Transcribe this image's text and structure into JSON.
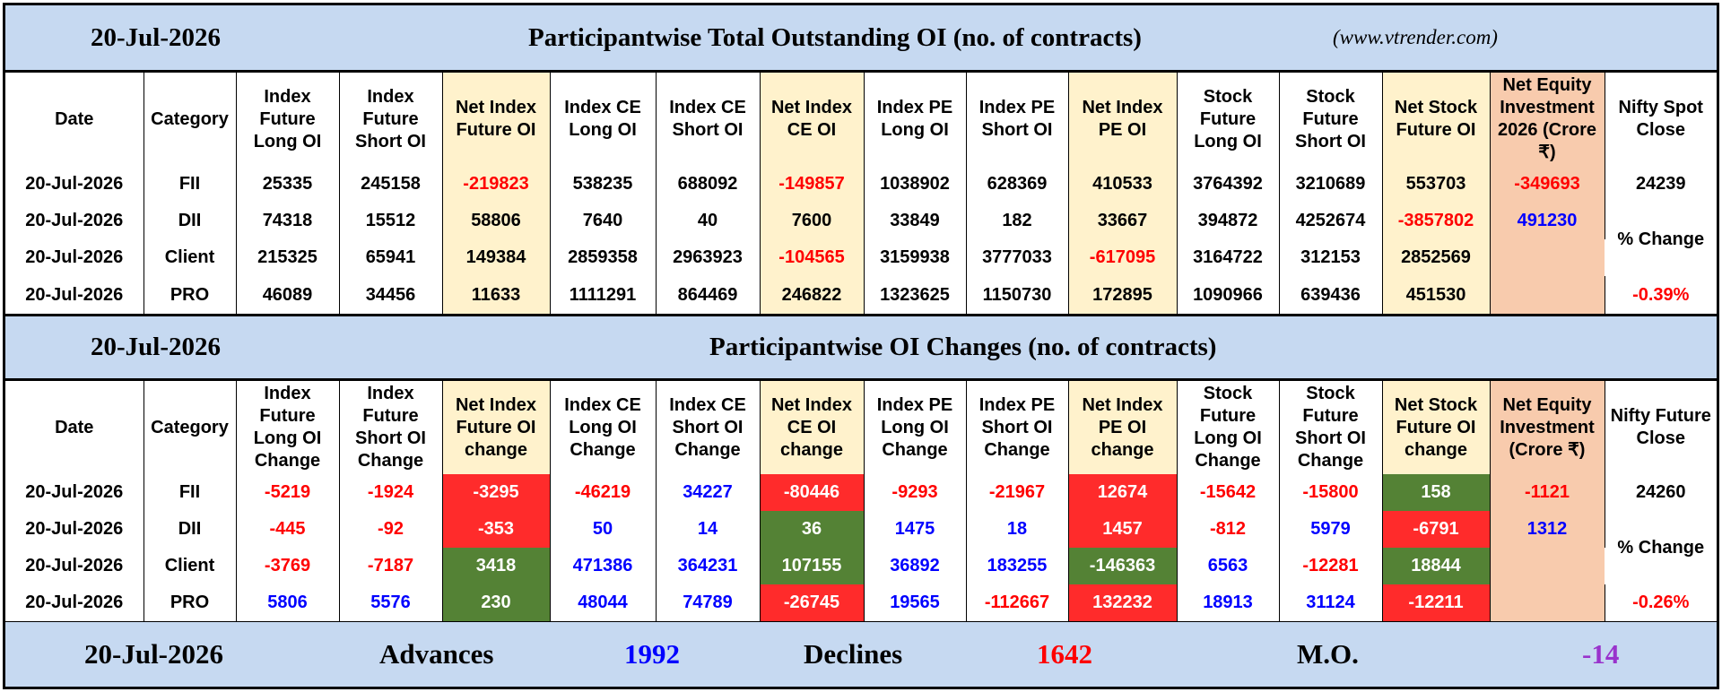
{
  "top_band": {
    "date": "20-Jul-2026",
    "title": "Participantwise Total Outstanding OI (no. of contracts)",
    "site": "(www.vtrender.com)"
  },
  "top_table": {
    "headers": [
      "Date",
      "Category",
      "Index Future Long OI",
      "Index Future Short OI",
      "Net Index Future OI",
      "Index CE Long OI",
      "Index CE Short OI",
      "Net Index CE OI",
      "Index PE Long OI",
      "Index PE Short OI",
      "Net Index PE OI",
      "Stock Future Long OI",
      "Stock Future Short OI",
      "Net Stock Future OI",
      "Net Equity Investment 2026 (Crore ₹)",
      "Nifty Spot Close"
    ],
    "rows": [
      {
        "cells": [
          "20-Jul-2026",
          "FII",
          "25335",
          "245158",
          "-219823",
          "538235",
          "688092",
          "-149857",
          "1038902",
          "628369",
          "410533",
          "3764392",
          "3210689",
          "553703",
          "-349693"
        ]
      },
      {
        "cells": [
          "20-Jul-2026",
          "DII",
          "74318",
          "15512",
          "58806",
          "7640",
          "40",
          "7600",
          "33849",
          "182",
          "33667",
          "394872",
          "4252674",
          "-3857802",
          "491230"
        ]
      },
      {
        "cells": [
          "20-Jul-2026",
          "Client",
          "215325",
          "65941",
          "149384",
          "2859358",
          "2963923",
          "-104565",
          "3159938",
          "3777033",
          "-617095",
          "3164722",
          "312153",
          "2852569",
          ""
        ]
      },
      {
        "cells": [
          "20-Jul-2026",
          "PRO",
          "46089",
          "34456",
          "11633",
          "1111291",
          "864469",
          "246822",
          "1323625",
          "1150730",
          "172895",
          "1090966",
          "639436",
          "451530",
          ""
        ]
      }
    ],
    "nifty_close": "24239",
    "change_label": "% Change",
    "change_value": "-0.39%"
  },
  "mid_band": {
    "date": "20-Jul-2026",
    "title": "Participantwise OI Changes (no. of contracts)"
  },
  "bottom_table": {
    "headers": [
      "Date",
      "Category",
      "Index Future Long OI Change",
      "Index Future Short OI Change",
      "Net Index Future OI change",
      "Index CE Long OI Change",
      "Index CE Short OI Change",
      "Net Index CE OI change",
      "Index PE Long OI Change",
      "Index PE Short OI Change",
      "Net Index PE OI change",
      "Stock Future Long OI Change",
      "Stock Future Short OI Change",
      "Net Stock Future OI change",
      "Net Equity Investment (Crore ₹)",
      "Nifty Future Close"
    ],
    "rows": [
      {
        "cells": [
          "20-Jul-2026",
          "FII",
          "-5219",
          "-1924",
          "-3295",
          "-46219",
          "34227",
          "-80446",
          "-9293",
          "-21967",
          "12674",
          "-15642",
          "-15800",
          "158",
          "-1121"
        ]
      },
      {
        "cells": [
          "20-Jul-2026",
          "DII",
          "-445",
          "-92",
          "-353",
          "50",
          "14",
          "36",
          "1475",
          "18",
          "1457",
          "-812",
          "5979",
          "-6791",
          "1312"
        ]
      },
      {
        "cells": [
          "20-Jul-2026",
          "Client",
          "-3769",
          "-7187",
          "3418",
          "471386",
          "364231",
          "107155",
          "36892",
          "183255",
          "-146363",
          "6563",
          "-12281",
          "18844",
          ""
        ]
      },
      {
        "cells": [
          "20-Jul-2026",
          "PRO",
          "5806",
          "5576",
          "230",
          "48044",
          "74789",
          "-26745",
          "19565",
          "-112667",
          "132232",
          "18913",
          "31124",
          "-12211",
          ""
        ]
      }
    ],
    "nifty_close": "24260",
    "change_label": "% Change",
    "change_value": "-0.26%"
  },
  "footer": {
    "date": "20-Jul-2026",
    "advances_label": "Advances",
    "advances_value": "1992",
    "declines_label": "Declines",
    "declines_value": "1642",
    "mo_label": "M.O.",
    "mo_value": "-14"
  },
  "colors": {
    "band_blue": "#c6d9f1",
    "net_yellow": "#fff2cc",
    "equity_orange": "#f8cbad",
    "positive_green": "#548235",
    "negative_red": "#ff2b2b",
    "text_red": "#ff0000",
    "text_blue": "#0000ff",
    "mo_purple": "#9933cc"
  }
}
